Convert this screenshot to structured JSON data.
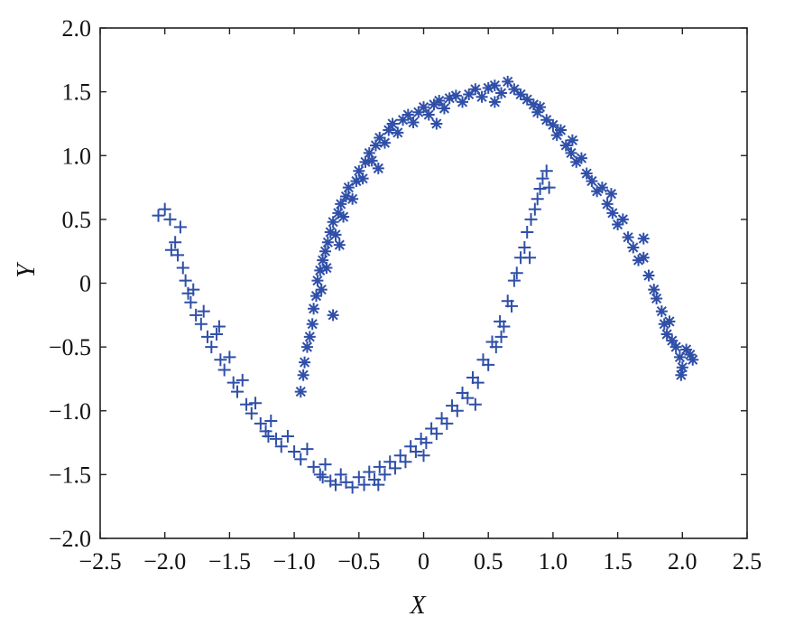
{
  "chart_data": {
    "type": "scatter",
    "title": "",
    "xlabel": "X",
    "ylabel": "Y",
    "xlim": [
      -2.5,
      2.5
    ],
    "ylim": [
      -2.0,
      2.0
    ],
    "xticks": [
      -2.5,
      -2.0,
      -1.5,
      -1.0,
      -0.5,
      0,
      0.5,
      1.0,
      1.5,
      2.0,
      2.5
    ],
    "yticks": [
      -2.0,
      -1.5,
      -1.0,
      -0.5,
      0,
      0.5,
      1.0,
      1.5,
      2.0
    ],
    "xtick_labels": [
      "−2.5",
      "−2.0",
      "−1.5",
      "−1.0",
      "−0.5",
      "0",
      "0.5",
      "1.0",
      "1.5",
      "2.0",
      "2.5"
    ],
    "ytick_labels": [
      "−2.0",
      "−1.5",
      "−1.0",
      "−0.5",
      "0",
      "0.5",
      "1.0",
      "1.5",
      "2.0"
    ],
    "grid": false,
    "legend": "none",
    "marker_color": "#2f4fa8",
    "series": [
      {
        "marker": "*",
        "points": [
          [
            -0.95,
            -0.85
          ],
          [
            -0.93,
            -0.72
          ],
          [
            -0.92,
            -0.62
          ],
          [
            -0.9,
            -0.5
          ],
          [
            -0.88,
            -0.42
          ],
          [
            -0.86,
            -0.32
          ],
          [
            -0.85,
            -0.2
          ],
          [
            -0.83,
            -0.1
          ],
          [
            -0.82,
            0.02
          ],
          [
            -0.8,
            0.1
          ],
          [
            -0.79,
            -0.05
          ],
          [
            -0.78,
            0.18
          ],
          [
            -0.76,
            0.25
          ],
          [
            -0.75,
            0.12
          ],
          [
            -0.74,
            0.32
          ],
          [
            -0.72,
            0.4
          ],
          [
            -0.7,
            0.48
          ],
          [
            -0.68,
            0.38
          ],
          [
            -0.66,
            0.55
          ],
          [
            -0.64,
            0.62
          ],
          [
            -0.62,
            0.52
          ],
          [
            -0.6,
            0.68
          ],
          [
            -0.58,
            0.75
          ],
          [
            -0.55,
            0.66
          ],
          [
            -0.52,
            0.8
          ],
          [
            -0.5,
            0.88
          ],
          [
            -0.47,
            0.82
          ],
          [
            -0.45,
            0.95
          ],
          [
            -0.42,
            1.02
          ],
          [
            -0.4,
            0.96
          ],
          [
            -0.37,
            1.08
          ],
          [
            -0.34,
            1.14
          ],
          [
            -0.3,
            1.1
          ],
          [
            -0.27,
            1.2
          ],
          [
            -0.24,
            1.25
          ],
          [
            -0.2,
            1.18
          ],
          [
            -0.16,
            1.28
          ],
          [
            -0.12,
            1.32
          ],
          [
            -0.08,
            1.26
          ],
          [
            -0.04,
            1.34
          ],
          [
            0.0,
            1.38
          ],
          [
            0.04,
            1.32
          ],
          [
            0.08,
            1.4
          ],
          [
            0.12,
            1.43
          ],
          [
            0.16,
            1.37
          ],
          [
            0.2,
            1.45
          ],
          [
            0.25,
            1.47
          ],
          [
            0.3,
            1.42
          ],
          [
            0.35,
            1.48
          ],
          [
            0.4,
            1.52
          ],
          [
            0.45,
            1.46
          ],
          [
            0.5,
            1.53
          ],
          [
            0.55,
            1.55
          ],
          [
            0.6,
            1.49
          ],
          [
            0.65,
            1.58
          ],
          [
            0.7,
            1.52
          ],
          [
            0.75,
            1.48
          ],
          [
            0.8,
            1.44
          ],
          [
            0.85,
            1.4
          ],
          [
            0.88,
            1.34
          ],
          [
            0.9,
            1.38
          ],
          [
            0.95,
            1.28
          ],
          [
            1.0,
            1.24
          ],
          [
            1.03,
            1.16
          ],
          [
            1.06,
            1.2
          ],
          [
            1.1,
            1.08
          ],
          [
            1.14,
            1.02
          ],
          [
            1.18,
            0.95
          ],
          [
            1.22,
            0.98
          ],
          [
            1.26,
            0.86
          ],
          [
            1.3,
            0.8
          ],
          [
            1.34,
            0.72
          ],
          [
            1.38,
            0.75
          ],
          [
            1.42,
            0.62
          ],
          [
            1.46,
            0.55
          ],
          [
            1.5,
            0.46
          ],
          [
            1.54,
            0.5
          ],
          [
            1.58,
            0.36
          ],
          [
            1.62,
            0.28
          ],
          [
            1.66,
            0.18
          ],
          [
            1.7,
            0.2
          ],
          [
            1.74,
            0.06
          ],
          [
            1.78,
            -0.05
          ],
          [
            1.8,
            -0.12
          ],
          [
            1.84,
            -0.22
          ],
          [
            1.86,
            -0.32
          ],
          [
            1.88,
            -0.4
          ],
          [
            1.92,
            -0.45
          ],
          [
            1.95,
            -0.5
          ],
          [
            1.98,
            -0.58
          ],
          [
            2.0,
            -0.66
          ],
          [
            2.03,
            -0.52
          ],
          [
            2.06,
            -0.56
          ],
          [
            2.08,
            -0.6
          ],
          [
            -0.7,
            -0.25
          ],
          [
            -0.65,
            0.3
          ],
          [
            -0.35,
            0.9
          ],
          [
            0.1,
            1.25
          ],
          [
            0.55,
            1.42
          ],
          [
            1.15,
            1.12
          ],
          [
            1.45,
            0.7
          ],
          [
            1.7,
            0.35
          ],
          [
            1.9,
            -0.3
          ],
          [
            1.99,
            -0.72
          ]
        ]
      },
      {
        "marker": "+",
        "points": [
          [
            -2.05,
            0.53
          ],
          [
            -2.0,
            0.58
          ],
          [
            -1.96,
            0.5
          ],
          [
            -1.92,
            0.32
          ],
          [
            -1.9,
            0.22
          ],
          [
            -1.88,
            0.44
          ],
          [
            -1.86,
            0.12
          ],
          [
            -1.84,
            0.02
          ],
          [
            -1.82,
            -0.08
          ],
          [
            -1.8,
            -0.15
          ],
          [
            -1.78,
            -0.05
          ],
          [
            -1.76,
            -0.25
          ],
          [
            -1.72,
            -0.32
          ],
          [
            -1.7,
            -0.22
          ],
          [
            -1.67,
            -0.42
          ],
          [
            -1.64,
            -0.5
          ],
          [
            -1.6,
            -0.4
          ],
          [
            -1.57,
            -0.6
          ],
          [
            -1.54,
            -0.68
          ],
          [
            -1.5,
            -0.58
          ],
          [
            -1.47,
            -0.78
          ],
          [
            -1.44,
            -0.85
          ],
          [
            -1.4,
            -0.76
          ],
          [
            -1.37,
            -0.95
          ],
          [
            -1.33,
            -1.02
          ],
          [
            -1.3,
            -0.94
          ],
          [
            -1.26,
            -1.1
          ],
          [
            -1.22,
            -1.16
          ],
          [
            -1.18,
            -1.08
          ],
          [
            -1.14,
            -1.22
          ],
          [
            -1.1,
            -1.28
          ],
          [
            -1.05,
            -1.2
          ],
          [
            -1.0,
            -1.32
          ],
          [
            -0.95,
            -1.38
          ],
          [
            -0.9,
            -1.3
          ],
          [
            -0.85,
            -1.44
          ],
          [
            -0.8,
            -1.5
          ],
          [
            -0.76,
            -1.42
          ],
          [
            -0.72,
            -1.55
          ],
          [
            -0.68,
            -1.58
          ],
          [
            -0.64,
            -1.5
          ],
          [
            -0.6,
            -1.56
          ],
          [
            -0.55,
            -1.6
          ],
          [
            -0.5,
            -1.52
          ],
          [
            -0.46,
            -1.58
          ],
          [
            -0.42,
            -1.48
          ],
          [
            -0.38,
            -1.54
          ],
          [
            -0.34,
            -1.44
          ],
          [
            -0.3,
            -1.5
          ],
          [
            -0.26,
            -1.4
          ],
          [
            -0.22,
            -1.45
          ],
          [
            -0.18,
            -1.35
          ],
          [
            -0.14,
            -1.4
          ],
          [
            -0.1,
            -1.28
          ],
          [
            -0.06,
            -1.32
          ],
          [
            -0.02,
            -1.22
          ],
          [
            0.02,
            -1.25
          ],
          [
            0.06,
            -1.14
          ],
          [
            0.1,
            -1.18
          ],
          [
            0.14,
            -1.06
          ],
          [
            0.18,
            -1.1
          ],
          [
            0.22,
            -0.96
          ],
          [
            0.26,
            -1.0
          ],
          [
            0.3,
            -0.86
          ],
          [
            0.34,
            -0.9
          ],
          [
            0.38,
            -0.74
          ],
          [
            0.42,
            -0.78
          ],
          [
            0.46,
            -0.6
          ],
          [
            0.5,
            -0.64
          ],
          [
            0.53,
            -0.46
          ],
          [
            0.56,
            -0.5
          ],
          [
            0.59,
            -0.3
          ],
          [
            0.62,
            -0.34
          ],
          [
            0.65,
            -0.14
          ],
          [
            0.68,
            -0.18
          ],
          [
            0.7,
            0.02
          ],
          [
            0.72,
            0.08
          ],
          [
            0.75,
            0.2
          ],
          [
            0.78,
            0.28
          ],
          [
            0.8,
            0.4
          ],
          [
            0.83,
            0.5
          ],
          [
            0.86,
            0.58
          ],
          [
            0.88,
            0.66
          ],
          [
            0.9,
            0.74
          ],
          [
            0.92,
            0.82
          ],
          [
            0.95,
            0.88
          ],
          [
            0.97,
            0.75
          ],
          [
            -1.95,
            0.26
          ],
          [
            -1.58,
            -0.34
          ],
          [
            -1.2,
            -1.2
          ],
          [
            -0.78,
            -1.52
          ],
          [
            -0.35,
            -1.58
          ],
          [
            0.0,
            -1.35
          ],
          [
            0.4,
            -0.95
          ],
          [
            0.6,
            -0.42
          ],
          [
            0.82,
            0.2
          ]
        ]
      }
    ]
  }
}
